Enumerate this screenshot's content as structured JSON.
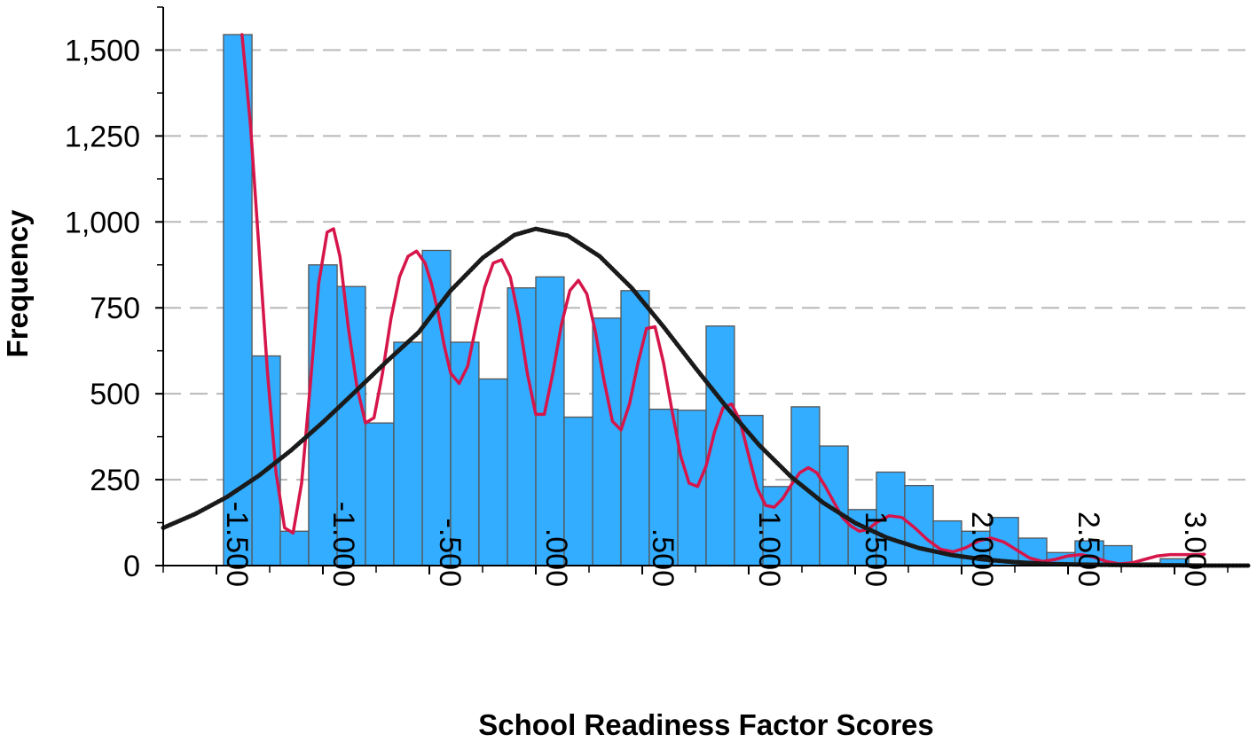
{
  "chart_data": {
    "type": "bar",
    "subtype": "histogram",
    "title": "",
    "xlabel": "School Readiness Factor Scores",
    "ylabel": "Frequency",
    "xlim": [
      -1.75,
      3.35
    ],
    "ylim": [
      0,
      1625
    ],
    "grid": "horizontal dashed",
    "bin_width": 0.1333,
    "bins": [
      {
        "x0": -1.467,
        "x1": -1.333,
        "value": 1545
      },
      {
        "x0": -1.333,
        "x1": -1.2,
        "value": 610
      },
      {
        "x0": -1.2,
        "x1": -1.067,
        "value": 100
      },
      {
        "x0": -1.067,
        "x1": -0.933,
        "value": 875
      },
      {
        "x0": -0.933,
        "x1": -0.8,
        "value": 812
      },
      {
        "x0": -0.8,
        "x1": -0.667,
        "value": 415
      },
      {
        "x0": -0.667,
        "x1": -0.533,
        "value": 650
      },
      {
        "x0": -0.533,
        "x1": -0.4,
        "value": 917
      },
      {
        "x0": -0.4,
        "x1": -0.267,
        "value": 650
      },
      {
        "x0": -0.267,
        "x1": -0.133,
        "value": 543
      },
      {
        "x0": -0.133,
        "x1": 0.0,
        "value": 808
      },
      {
        "x0": 0.0,
        "x1": 0.133,
        "value": 840
      },
      {
        "x0": 0.133,
        "x1": 0.267,
        "value": 432
      },
      {
        "x0": 0.267,
        "x1": 0.4,
        "value": 720
      },
      {
        "x0": 0.4,
        "x1": 0.533,
        "value": 800
      },
      {
        "x0": 0.533,
        "x1": 0.667,
        "value": 455
      },
      {
        "x0": 0.667,
        "x1": 0.8,
        "value": 452
      },
      {
        "x0": 0.8,
        "x1": 0.933,
        "value": 697
      },
      {
        "x0": 0.933,
        "x1": 1.067,
        "value": 437
      },
      {
        "x0": 1.067,
        "x1": 1.2,
        "value": 230
      },
      {
        "x0": 1.2,
        "x1": 1.333,
        "value": 462
      },
      {
        "x0": 1.333,
        "x1": 1.467,
        "value": 348
      },
      {
        "x0": 1.467,
        "x1": 1.6,
        "value": 163
      },
      {
        "x0": 1.6,
        "x1": 1.733,
        "value": 272
      },
      {
        "x0": 1.733,
        "x1": 1.867,
        "value": 233
      },
      {
        "x0": 1.867,
        "x1": 2.0,
        "value": 130
      },
      {
        "x0": 2.0,
        "x1": 2.133,
        "value": 100
      },
      {
        "x0": 2.133,
        "x1": 2.267,
        "value": 140
      },
      {
        "x0": 2.267,
        "x1": 2.4,
        "value": 80
      },
      {
        "x0": 2.4,
        "x1": 2.533,
        "value": 38
      },
      {
        "x0": 2.533,
        "x1": 2.667,
        "value": 72
      },
      {
        "x0": 2.667,
        "x1": 2.8,
        "value": 58
      },
      {
        "x0": 2.8,
        "x1": 2.933,
        "value": 8
      },
      {
        "x0": 2.933,
        "x1": 3.067,
        "value": 20
      }
    ],
    "series": [
      {
        "type": "line",
        "style": "solid",
        "color": "#d6154a",
        "x": [
          -1.38,
          -1.34,
          -1.3,
          -1.26,
          -1.22,
          -1.18,
          -1.14,
          -1.1,
          -1.06,
          -1.02,
          -0.98,
          -0.95,
          -0.92,
          -0.88,
          -0.84,
          -0.8,
          -0.76,
          -0.72,
          -0.68,
          -0.64,
          -0.6,
          -0.56,
          -0.52,
          -0.49,
          -0.46,
          -0.43,
          -0.4,
          -0.36,
          -0.32,
          -0.28,
          -0.24,
          -0.2,
          -0.16,
          -0.12,
          -0.08,
          -0.04,
          0.0,
          0.04,
          0.08,
          0.12,
          0.16,
          0.2,
          0.24,
          0.28,
          0.32,
          0.36,
          0.4,
          0.44,
          0.48,
          0.52,
          0.56,
          0.6,
          0.64,
          0.68,
          0.72,
          0.76,
          0.8,
          0.84,
          0.88,
          0.92,
          0.96,
          1.0,
          1.04,
          1.08,
          1.12,
          1.16,
          1.2,
          1.24,
          1.28,
          1.32,
          1.36,
          1.4,
          1.44,
          1.48,
          1.52,
          1.56,
          1.6,
          1.66,
          1.72,
          1.78,
          1.84,
          1.9,
          1.96,
          2.02,
          2.08,
          2.14,
          2.2,
          2.26,
          2.32,
          2.38,
          2.44,
          2.5,
          2.56,
          2.62,
          2.68,
          2.74,
          2.8,
          2.86,
          2.92,
          2.98,
          3.04,
          3.1,
          3.14
        ],
        "y": [
          1545,
          1280,
          920,
          560,
          270,
          110,
          95,
          240,
          520,
          820,
          970,
          980,
          900,
          690,
          520,
          415,
          430,
          560,
          720,
          840,
          900,
          915,
          880,
          820,
          740,
          640,
          560,
          530,
          580,
          700,
          810,
          880,
          890,
          840,
          720,
          560,
          440,
          440,
          560,
          700,
          800,
          830,
          790,
          680,
          540,
          420,
          395,
          470,
          590,
          690,
          695,
          590,
          450,
          320,
          240,
          230,
          290,
          390,
          460,
          470,
          420,
          320,
          225,
          175,
          170,
          195,
          235,
          270,
          285,
          270,
          230,
          185,
          140,
          115,
          100,
          105,
          125,
          145,
          140,
          110,
          75,
          48,
          40,
          52,
          72,
          80,
          68,
          45,
          22,
          12,
          18,
          28,
          32,
          25,
          12,
          5,
          8,
          18,
          28,
          32,
          32,
          32,
          33
        ]
      },
      {
        "type": "line",
        "style": "dotted",
        "color": "#1a1a1a",
        "x": [
          -1.75,
          -1.6,
          -1.45,
          -1.3,
          -1.15,
          -1.0,
          -0.85,
          -0.7,
          -0.55,
          -0.4,
          -0.25,
          -0.1,
          0.0,
          0.15,
          0.3,
          0.45,
          0.6,
          0.75,
          0.9,
          1.05,
          1.2,
          1.35,
          1.5,
          1.65,
          1.8,
          1.95,
          2.1,
          2.25,
          2.4,
          2.55,
          2.7,
          2.85,
          3.0,
          3.15,
          3.35
        ],
        "y": [
          110,
          150,
          200,
          262,
          335,
          417,
          505,
          594,
          679,
          800,
          895,
          962,
          980,
          960,
          900,
          808,
          695,
          575,
          458,
          350,
          258,
          183,
          124,
          81,
          51,
          31,
          18,
          10,
          5,
          3,
          2,
          1,
          1,
          0,
          0
        ]
      }
    ],
    "x_ticks": [
      -1.5,
      -1.0,
      -0.5,
      0.0,
      0.5,
      1.0,
      1.5,
      2.0,
      2.5,
      3.0
    ],
    "x_tick_labels": [
      "-1.500",
      "-1.000",
      "-.500",
      ".000",
      ".500",
      "1.000",
      "1.500",
      "2.000",
      "2.500",
      "3.000"
    ],
    "x_minor_ticks": [
      -1.75,
      -1.25,
      -0.75,
      -0.25,
      0.25,
      0.75,
      1.25,
      1.75,
      2.25,
      2.75,
      3.25
    ],
    "y_ticks": [
      0,
      250,
      500,
      750,
      1000,
      1250,
      1500
    ],
    "y_tick_labels": [
      "0",
      "250",
      "500",
      "750",
      "1,000",
      "1,250",
      "1,500"
    ],
    "y_minor_ticks": [
      125,
      375,
      625,
      875,
      1125,
      1375,
      1625
    ],
    "colors": {
      "bar_fill": "#33adff",
      "bar_stroke": "#555555",
      "grid": "#b8b8b8"
    }
  }
}
